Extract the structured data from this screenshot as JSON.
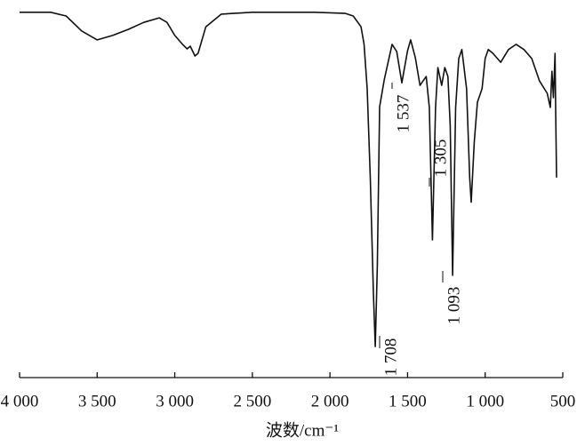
{
  "chart_data": {
    "type": "line",
    "x_label": "波数/cm⁻¹",
    "annotations": [
      "1 708",
      "1 537",
      "1 305",
      "1 093"
    ],
    "xlim": [
      4000,
      500
    ],
    "ylim": [
      0,
      100
    ],
    "xticks": [
      {
        "value": 4000,
        "label": "4 000"
      },
      {
        "value": 3500,
        "label": "3 500"
      },
      {
        "value": 3000,
        "label": "3 000"
      },
      {
        "value": 2500,
        "label": "2 500"
      },
      {
        "value": 2000,
        "label": "2 000"
      },
      {
        "value": 1500,
        "label": "1 500"
      },
      {
        "value": 1000,
        "label": "1 000"
      },
      500
    ],
    "series": [
      {
        "color": "#111111",
        "x": [
          4000,
          3800,
          3700,
          3600,
          3500,
          3400,
          3300,
          3200,
          3100,
          3050,
          3000,
          2950,
          2920,
          2900,
          2870,
          2850,
          2800,
          2700,
          2500,
          2300,
          2100,
          1900,
          1850,
          1800,
          1780,
          1760,
          1740,
          1720,
          1708,
          1695,
          1680,
          1650,
          1600,
          1570,
          1537,
          1500,
          1480,
          1450,
          1420,
          1400,
          1380,
          1360,
          1340,
          1320,
          1305,
          1280,
          1260,
          1240,
          1225,
          1210,
          1190,
          1170,
          1150,
          1120,
          1100,
          1090,
          1070,
          1050,
          1020,
          1000,
          980,
          950,
          900,
          850,
          800,
          750,
          700,
          650,
          600,
          580,
          570,
          560,
          550,
          545,
          540
        ],
        "values": [
          97.9,
          97.9,
          96.9,
          92.9,
          90.5,
          91.7,
          93.3,
          95.2,
          96.4,
          95.2,
          91.7,
          89.3,
          88.1,
          88.8,
          86.2,
          86.9,
          94.0,
          97.4,
          97.9,
          97.9,
          97.9,
          97.6,
          96.9,
          94.0,
          89.3,
          77.4,
          53.6,
          22.6,
          8.3,
          29.8,
          72.6,
          79.8,
          89.3,
          87.4,
          79.0,
          87.6,
          90.5,
          85.7,
          78.3,
          79.5,
          80.7,
          72.4,
          36.9,
          72.4,
          83.1,
          78.3,
          83.1,
          80.7,
          67.6,
          27.4,
          72.4,
          85.5,
          87.9,
          77.4,
          53.6,
          47.0,
          63.3,
          73.8,
          77.4,
          85.5,
          87.9,
          86.9,
          84.5,
          87.9,
          89.3,
          87.9,
          85.5,
          79.5,
          76.2,
          72.4,
          82.1,
          75.0,
          86.9,
          70.0,
          53.6
        ]
      }
    ]
  }
}
